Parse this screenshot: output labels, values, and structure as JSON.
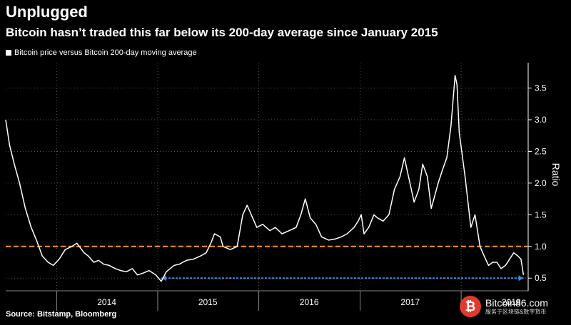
{
  "header": {
    "title": "Unplugged",
    "subtitle": "Bitcoin hasn’t traded this far below its 200-day average since January 2015"
  },
  "footer": {
    "source": "Source: Bitstamp, Bloomberg"
  },
  "watermark": {
    "logo_glyph": "₿",
    "site": "Bitcoin86.com",
    "tagline": "服务于区块链&数字货币"
  },
  "colors": {
    "background": "#000000",
    "line": "#ffffff",
    "reference_line": "#f7941d",
    "annotation_line": "#3d8bd6",
    "grid": "#555555"
  },
  "chart_data": {
    "type": "line",
    "title": "Unplugged",
    "subtitle": "Bitcoin hasn’t traded this far below its 200-day average since January 2015",
    "xlabel": "",
    "ylabel": "Ratio",
    "x_tick_labels": [
      "2014",
      "2015",
      "2016",
      "2017",
      "2018"
    ],
    "y_ticks": [
      0.5,
      1.0,
      1.5,
      2.0,
      2.5,
      3.0,
      3.5
    ],
    "y_tick_labels": [
      "0.5",
      "1.0",
      "1.5",
      "2.0",
      "2.5",
      "3.0",
      "3.5"
    ],
    "xlim": [
      "2013-07-01",
      "2018-08-31"
    ],
    "ylim": [
      0.3,
      3.9
    ],
    "grid": true,
    "legend": "top-left",
    "series": [
      {
        "name": "Bitcoin price versus Bitcoin 200-day moving average",
        "x": [
          "2013-07-01",
          "2013-07-15",
          "2013-08-01",
          "2013-08-20",
          "2013-09-10",
          "2013-10-01",
          "2013-10-20",
          "2013-11-10",
          "2013-12-01",
          "2013-12-20",
          "2014-01-10",
          "2014-02-01",
          "2014-02-25",
          "2014-03-15",
          "2014-04-10",
          "2014-04-25",
          "2014-05-15",
          "2014-06-01",
          "2014-06-20",
          "2014-07-10",
          "2014-08-01",
          "2014-08-20",
          "2014-09-10",
          "2014-10-01",
          "2014-10-20",
          "2014-11-10",
          "2014-12-01",
          "2014-12-25",
          "2015-01-14",
          "2015-02-01",
          "2015-03-01",
          "2015-03-20",
          "2015-04-15",
          "2015-05-10",
          "2015-06-05",
          "2015-06-25",
          "2015-07-12",
          "2015-07-25",
          "2015-08-15",
          "2015-08-25",
          "2015-09-20",
          "2015-10-15",
          "2015-11-04",
          "2015-11-20",
          "2015-12-10",
          "2015-12-25",
          "2016-01-15",
          "2016-02-10",
          "2016-03-01",
          "2016-03-25",
          "2016-04-20",
          "2016-05-15",
          "2016-06-01",
          "2016-06-17",
          "2016-07-05",
          "2016-07-25",
          "2016-08-15",
          "2016-09-10",
          "2016-10-05",
          "2016-10-25",
          "2016-11-15",
          "2016-12-10",
          "2016-12-25",
          "2017-01-05",
          "2017-01-15",
          "2017-02-01",
          "2017-02-20",
          "2017-03-05",
          "2017-03-25",
          "2017-04-15",
          "2017-05-05",
          "2017-05-25",
          "2017-06-10",
          "2017-06-25",
          "2017-07-15",
          "2017-08-01",
          "2017-08-15",
          "2017-09-01",
          "2017-09-15",
          "2017-10-10",
          "2017-10-25",
          "2017-11-10",
          "2017-11-25",
          "2017-12-10",
          "2017-12-17",
          "2017-12-25",
          "2018-01-15",
          "2018-02-05",
          "2018-02-20",
          "2018-03-10",
          "2018-03-25",
          "2018-04-10",
          "2018-04-25",
          "2018-05-10",
          "2018-05-25",
          "2018-06-10",
          "2018-06-25",
          "2018-07-10",
          "2018-07-25",
          "2018-08-05",
          "2018-08-14"
        ],
        "y": [
          3.0,
          2.6,
          2.3,
          2.0,
          1.6,
          1.3,
          1.1,
          0.85,
          0.75,
          0.7,
          0.8,
          0.95,
          1.0,
          1.05,
          0.9,
          0.85,
          0.75,
          0.78,
          0.72,
          0.7,
          0.65,
          0.62,
          0.6,
          0.65,
          0.55,
          0.58,
          0.62,
          0.55,
          0.45,
          0.6,
          0.7,
          0.72,
          0.78,
          0.8,
          0.85,
          0.9,
          1.05,
          1.2,
          1.15,
          1.0,
          0.95,
          1.0,
          1.5,
          1.65,
          1.45,
          1.3,
          1.35,
          1.25,
          1.3,
          1.2,
          1.25,
          1.3,
          1.5,
          1.75,
          1.45,
          1.35,
          1.15,
          1.1,
          1.12,
          1.15,
          1.2,
          1.3,
          1.4,
          1.5,
          1.2,
          1.3,
          1.5,
          1.45,
          1.4,
          1.5,
          1.9,
          2.1,
          2.4,
          2.1,
          1.7,
          1.9,
          2.3,
          2.1,
          1.6,
          2.0,
          2.2,
          2.4,
          2.9,
          3.7,
          3.55,
          2.8,
          2.1,
          1.3,
          1.5,
          1.0,
          0.85,
          0.7,
          0.75,
          0.75,
          0.65,
          0.7,
          0.8,
          0.9,
          0.85,
          0.8,
          0.55
        ]
      }
    ],
    "reference_lines": [
      {
        "y": 1.0,
        "style": "dashed"
      }
    ],
    "annotations": [
      {
        "type": "horizontal-arrow",
        "y": 0.5,
        "x_start": "2015-01-14",
        "x_end": "2018-08-14"
      }
    ]
  }
}
